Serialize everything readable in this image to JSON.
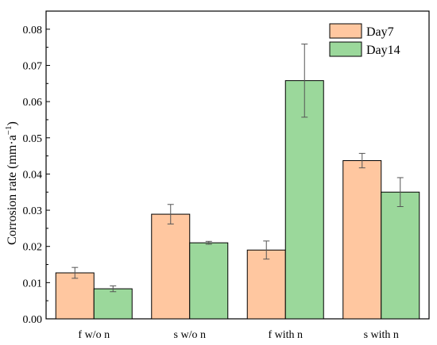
{
  "chart_data": {
    "type": "bar",
    "categories": [
      "f w/o n",
      "s w/o n",
      "f with n",
      "s with n"
    ],
    "series": [
      {
        "name": "Day7",
        "color": "#FFC7A0",
        "values": [
          0.0127,
          0.0289,
          0.019,
          0.0437
        ],
        "errors": [
          0.0015,
          0.0027,
          0.0025,
          0.002
        ]
      },
      {
        "name": "Day14",
        "color": "#9BD89B",
        "values": [
          0.0083,
          0.021,
          0.0658,
          0.035
        ],
        "errors": [
          0.0008,
          0.0004,
          0.0101,
          0.004
        ]
      }
    ],
    "ylabel_text": "Corrosion rate (mm·a",
    "ylabel_sup": "−1",
    "ylabel_close": ")",
    "ylim": [
      0,
      0.085
    ],
    "yticks": [
      "0.00",
      "0.01",
      "0.02",
      "0.03",
      "0.04",
      "0.05",
      "0.06",
      "0.07",
      "0.08"
    ],
    "legend_position": "top-right",
    "grid": false
  }
}
